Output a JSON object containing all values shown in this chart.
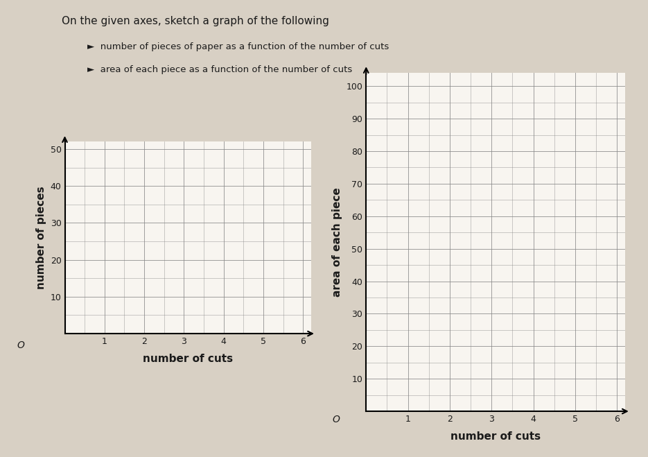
{
  "title_text": "On the given axes, sketch a graph of the following",
  "bullet1": "number of pieces of paper as a function of the number of cuts",
  "bullet2": "area of each piece as a function of the number of cuts",
  "chart1": {
    "xlabel": "number of cuts",
    "ylabel": "number of pieces",
    "xlim": [
      0,
      6.2
    ],
    "ylim": [
      0,
      52
    ],
    "xticks": [
      1,
      2,
      3,
      4,
      5,
      6
    ],
    "yticks": [
      10,
      20,
      30,
      40,
      50
    ],
    "grid_color": "#888888",
    "bg_color": "#f8f5f0"
  },
  "chart2": {
    "xlabel": "number of cuts",
    "ylabel": "area of each piece",
    "xlim": [
      0,
      6.2
    ],
    "ylim": [
      0,
      104
    ],
    "xticks": [
      1,
      2,
      3,
      4,
      5,
      6
    ],
    "yticks": [
      10,
      20,
      30,
      40,
      50,
      60,
      70,
      80,
      90,
      100
    ],
    "grid_color": "#888888",
    "bg_color": "#f8f5f0"
  },
  "overall_bg": "#d8d0c4",
  "font_color": "#1a1a1a",
  "label_fontsize": 9,
  "axis_label_fontsize": 11,
  "title_fontsize": 11
}
